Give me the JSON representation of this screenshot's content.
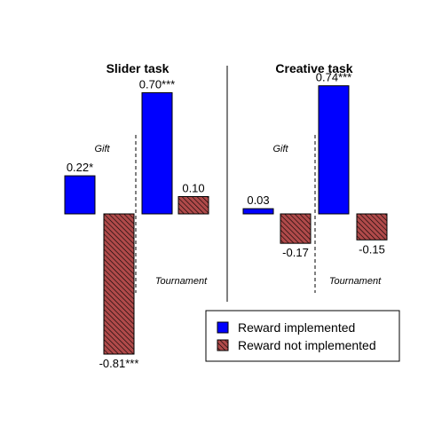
{
  "chart_data": [
    {
      "type": "bar",
      "title": "Slider task",
      "categories": [
        "Gift",
        "Tournament"
      ],
      "ylim": [
        -1.0,
        1.0
      ],
      "series": [
        {
          "name": "Reward implemented",
          "values": [
            0.22,
            0.7
          ],
          "labels": [
            "0.22*",
            "0.70***"
          ]
        },
        {
          "name": "Reward not implemented",
          "values": [
            -0.81,
            0.1
          ],
          "labels": [
            "-0.81***",
            "0.10"
          ]
        }
      ],
      "grid": false,
      "legend": "bottom-right"
    },
    {
      "type": "bar",
      "title": "Creative task",
      "categories": [
        "Gift",
        "Tournament"
      ],
      "ylim": [
        -1.0,
        1.0
      ],
      "series": [
        {
          "name": "Reward implemented",
          "values": [
            0.03,
            0.74
          ],
          "labels": [
            "0.03",
            "0.74***"
          ]
        },
        {
          "name": "Reward not implemented",
          "values": [
            -0.17,
            -0.15
          ],
          "labels": [
            "-0.17",
            "-0.15"
          ]
        }
      ],
      "grid": false,
      "legend": "bottom-right"
    }
  ],
  "legend": {
    "items": [
      {
        "label": "Reward implemented",
        "color": "#0000ff",
        "pattern": "solid"
      },
      {
        "label": "Reward not implemented",
        "color": "#a52a2a",
        "pattern": "hatched"
      }
    ]
  },
  "colors": {
    "implemented": "#0000ff",
    "not_implemented": "#a52a2a"
  }
}
